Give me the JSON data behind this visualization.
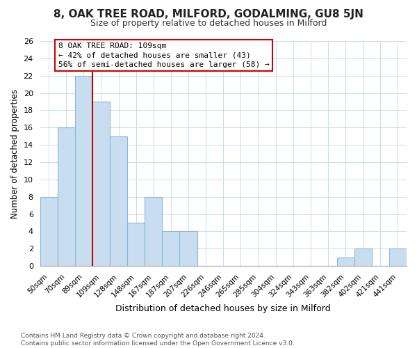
{
  "title": "8, OAK TREE ROAD, MILFORD, GODALMING, GU8 5JN",
  "subtitle": "Size of property relative to detached houses in Milford",
  "xlabel": "Distribution of detached houses by size in Milford",
  "ylabel": "Number of detached properties",
  "bin_labels": [
    "50sqm",
    "70sqm",
    "89sqm",
    "109sqm",
    "128sqm",
    "148sqm",
    "167sqm",
    "187sqm",
    "207sqm",
    "226sqm",
    "246sqm",
    "265sqm",
    "285sqm",
    "304sqm",
    "324sqm",
    "343sqm",
    "363sqm",
    "382sqm",
    "402sqm",
    "421sqm",
    "441sqm"
  ],
  "bar_heights": [
    8,
    16,
    22,
    19,
    15,
    5,
    8,
    4,
    4,
    0,
    0,
    0,
    0,
    0,
    0,
    0,
    0,
    1,
    2,
    0,
    2
  ],
  "bar_color": "#c8ddf0",
  "bar_edge_color": "#89b8d8",
  "vline_color": "#cc0000",
  "vline_bin_index": 3,
  "ylim": [
    0,
    26
  ],
  "yticks": [
    0,
    2,
    4,
    6,
    8,
    10,
    12,
    14,
    16,
    18,
    20,
    22,
    24,
    26
  ],
  "annotation_text": "8 OAK TREE ROAD: 109sqm\n← 42% of detached houses are smaller (43)\n56% of semi-detached houses are larger (58) →",
  "annotation_box_edge": "#cc0000",
  "footer_line1": "Contains HM Land Registry data © Crown copyright and database right 2024.",
  "footer_line2": "Contains public sector information licensed under the Open Government Licence v3.0.",
  "bg_color": "#ffffff",
  "grid_color": "#c8ddf0"
}
